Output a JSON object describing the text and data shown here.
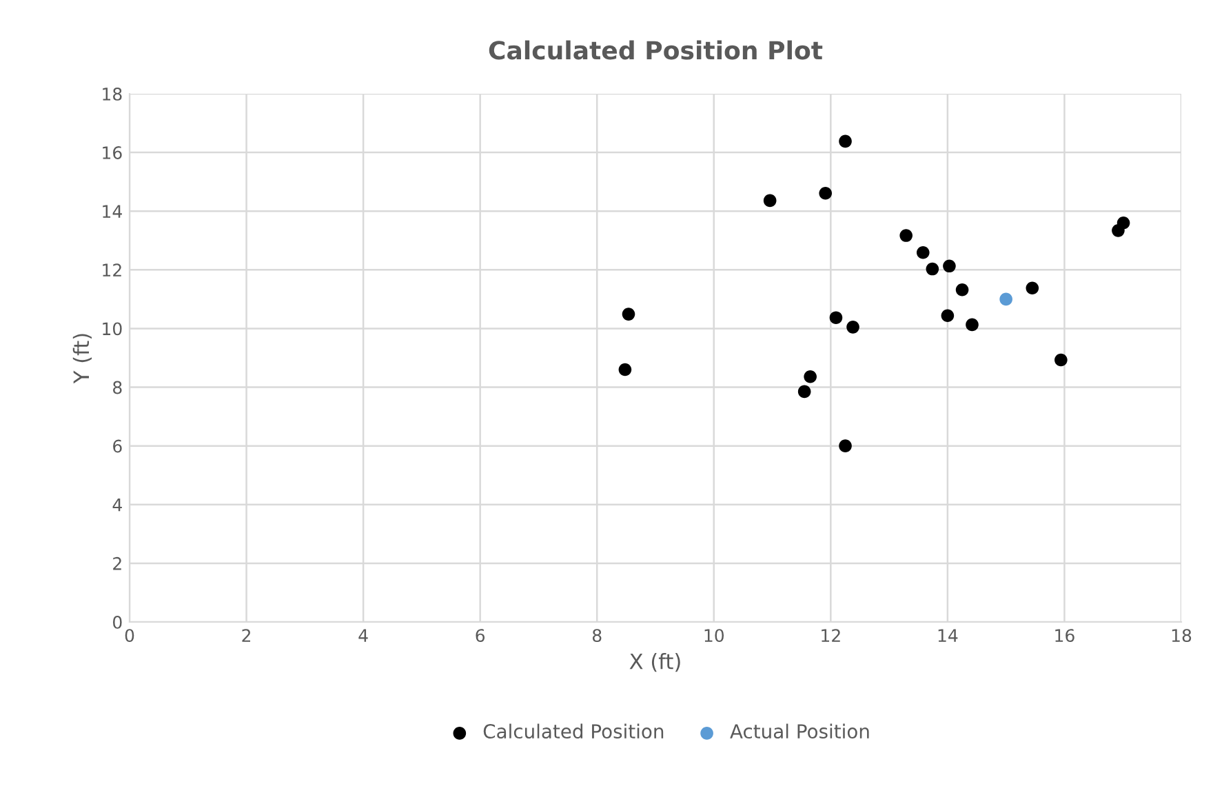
{
  "chart_data": {
    "type": "scatter",
    "title": "Calculated Position Plot",
    "xlabel": "X (ft)",
    "ylabel": "Y (ft)",
    "xlim": [
      0,
      18
    ],
    "ylim": [
      0,
      18
    ],
    "xticks": [
      0,
      2,
      4,
      6,
      8,
      10,
      12,
      14,
      16,
      18
    ],
    "yticks": [
      0,
      2,
      4,
      6,
      8,
      10,
      12,
      14,
      16,
      18
    ],
    "grid": true,
    "legend": "bottom",
    "marker": "circle",
    "series": [
      {
        "name": "Calculated Position",
        "color": "#000000",
        "x": [
          12.25,
          10.96,
          11.91,
          13.29,
          13.58,
          13.74,
          14.03,
          14.25,
          15.45,
          16.92,
          17.01,
          8.54,
          8.48,
          12.09,
          12.38,
          14.0,
          14.42,
          15.94,
          11.65,
          11.55,
          12.25
        ],
        "values": [
          16.38,
          14.36,
          14.61,
          13.17,
          12.59,
          12.03,
          12.13,
          11.32,
          11.38,
          13.34,
          13.6,
          10.49,
          8.6,
          10.37,
          10.05,
          10.44,
          10.13,
          8.93,
          8.36,
          7.85,
          6.0
        ]
      },
      {
        "name": "Actual Position",
        "color": "#5b9bd5",
        "x": [
          15.0
        ],
        "values": [
          11.0
        ]
      }
    ]
  }
}
